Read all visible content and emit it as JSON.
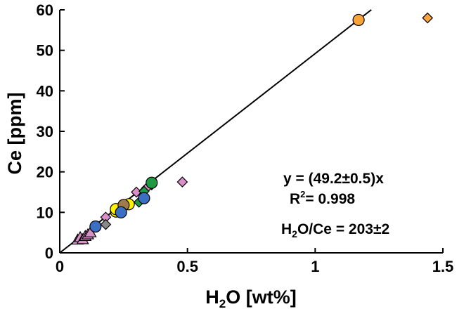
{
  "chart_data": {
    "type": "scatter",
    "title": "",
    "xlabel": {
      "main": "H",
      "sub": "2",
      "rest": "O [wt%]"
    },
    "ylabel": "Ce [ppm]",
    "xlim": [
      0,
      1.5
    ],
    "ylim": [
      0,
      60
    ],
    "x_ticks": [
      0,
      0.5,
      1,
      1.5
    ],
    "x_tick_labels": [
      "0",
      "0.5",
      "1",
      "1.5"
    ],
    "y_ticks": [
      0,
      10,
      20,
      30,
      40,
      50,
      60
    ],
    "y_tick_labels": [
      "0",
      "10",
      "20",
      "30",
      "40",
      "50",
      "60"
    ],
    "grid": false,
    "colors": {
      "pink": "#d98fc8",
      "orange": "#f7a43a",
      "blue": "#3a6fc4",
      "green": "#1e9a44",
      "yellow": "#fff200",
      "brown": "#a07a4a",
      "gray": "#8a8a8a"
    },
    "fit_line": {
      "slope": 49.2,
      "x_range": [
        0,
        1.22
      ]
    },
    "annotations": {
      "equation": "y = (49.2±0.5)x",
      "r2_label": "R",
      "r2_sup": "2",
      "r2_value": "= 0.998",
      "ratio_label_main": "H",
      "ratio_label_sub": "2",
      "ratio_label_rest": "O/Ce = 203±2"
    },
    "series": [
      {
        "marker": "triangle",
        "color": "pink",
        "points": [
          [
            0.07,
            3.2
          ],
          [
            0.08,
            3.8
          ],
          [
            0.09,
            3.3
          ],
          [
            0.1,
            4.1
          ],
          [
            0.11,
            4.5
          ],
          [
            0.12,
            5.0
          ]
        ]
      },
      {
        "marker": "diamond",
        "color": "pink",
        "points": [
          [
            0.18,
            8.8
          ],
          [
            0.3,
            15.0
          ],
          [
            0.34,
            16.0
          ],
          [
            0.36,
            16.8
          ],
          [
            0.48,
            17.5
          ]
        ]
      },
      {
        "marker": "diamond",
        "color": "gray",
        "points": [
          [
            0.18,
            7.0
          ]
        ]
      },
      {
        "marker": "diamond",
        "color": "green",
        "points": [
          [
            0.31,
            12.5
          ],
          [
            0.33,
            15.2
          ]
        ]
      },
      {
        "marker": "diamond",
        "color": "orange",
        "points": [
          [
            1.44,
            58.0
          ]
        ]
      },
      {
        "marker": "circle",
        "color": "yellow",
        "points": [
          [
            0.22,
            10.2
          ],
          [
            0.22,
            10.8
          ],
          [
            0.27,
            12.0
          ]
        ]
      },
      {
        "marker": "circle",
        "color": "brown",
        "points": [
          [
            0.25,
            11.8
          ]
        ]
      },
      {
        "marker": "circle",
        "color": "blue",
        "points": [
          [
            0.14,
            6.5
          ],
          [
            0.24,
            10.0
          ],
          [
            0.33,
            13.5
          ]
        ]
      },
      {
        "marker": "circle",
        "color": "green",
        "points": [
          [
            0.36,
            17.3
          ]
        ]
      },
      {
        "marker": "circle",
        "color": "orange",
        "points": [
          [
            1.17,
            57.5
          ]
        ]
      }
    ]
  }
}
